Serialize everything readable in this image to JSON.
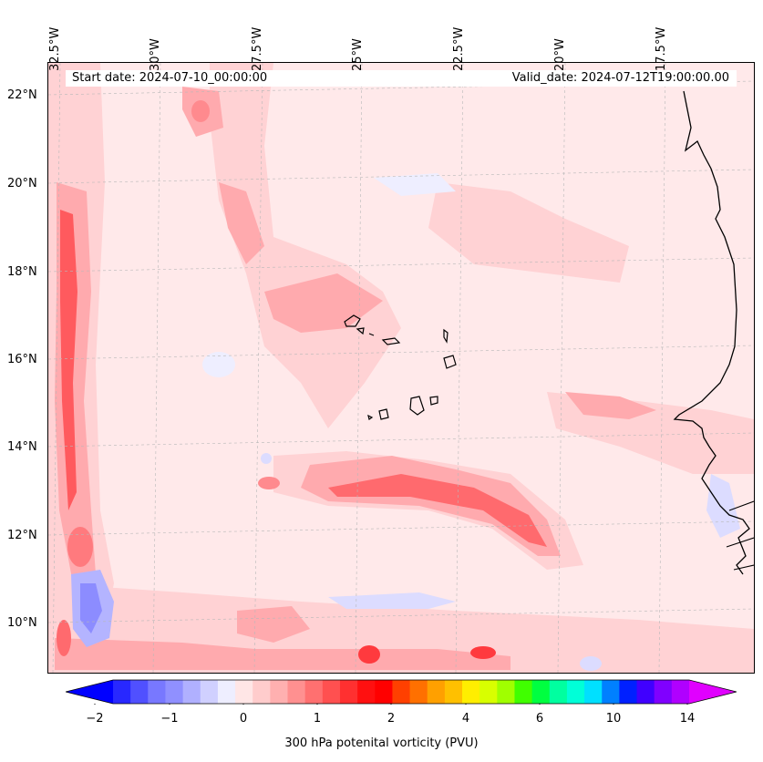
{
  "header": {
    "start_date": "Start date: 2024-07-10_00:00:00",
    "valid_date": "Valid_date: 2024-07-12T19:00:00.00"
  },
  "axes": {
    "longitude_labels": [
      "32.5°W",
      "30°W",
      "27.5°W",
      "25°W",
      "22.5°W",
      "20°W",
      "17.5°W"
    ],
    "latitude_labels": [
      "22°N",
      "20°N",
      "18°N",
      "16°N",
      "14°N",
      "12°N",
      "10°N"
    ],
    "gridlines": true
  },
  "colorbar": {
    "title": "300 hPa potenital vorticity (PVU)",
    "tick_labels": [
      "−2",
      "−1",
      "0",
      "1",
      "2",
      "4",
      "6",
      "10",
      "14"
    ],
    "colors": [
      "#0000ff",
      "#2828ff",
      "#5050ff",
      "#7878ff",
      "#9090ff",
      "#b0b0ff",
      "#d0d0ff",
      "#eeeeff",
      "#ffe6e6",
      "#ffcccc",
      "#ffb0b0",
      "#ff9090",
      "#ff7070",
      "#ff5050",
      "#ff3030",
      "#ff1010",
      "#ff0000",
      "#ff4000",
      "#ff7000",
      "#ffa000",
      "#ffc000",
      "#ffee00",
      "#d8ff00",
      "#a0ff00",
      "#40ff00",
      "#00ff40",
      "#00ffa0",
      "#00ffd8",
      "#00e0ff",
      "#0080ff",
      "#0020ff",
      "#4000ff",
      "#8000ff",
      "#b000ff",
      "#e000ff"
    ],
    "extend": "both"
  },
  "chart_data": {
    "type": "contour-map",
    "variable": "300 hPa potential vorticity",
    "units": "PVU",
    "lon_range_deg": [
      -33.0,
      -15.0
    ],
    "lat_range_deg": [
      9.0,
      22.8
    ],
    "features": [
      {
        "region": "western edge near 32.5°W, 12–19.5°N",
        "level": "2 PVU"
      },
      {
        "region": "band near 12.5–13°N, 26–20°W",
        "level": "1.5–2 PVU"
      },
      {
        "region": "southwest corner near 10–11°N, 32°W",
        "level": "-1 PVU"
      },
      {
        "region": "southern edge near 9.3°N",
        "level": "2 PVU"
      }
    ],
    "coastline": "Cape Verde islands and West African coast"
  }
}
